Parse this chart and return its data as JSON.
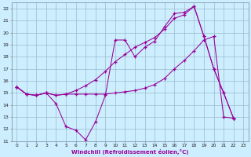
{
  "xlabel": "Windchill (Refroidissement éolien,°C)",
  "bg_color": "#cceeff",
  "line_color": "#990099",
  "grid_color": "#99bbcc",
  "xlim": [
    -0.5,
    23.5
  ],
  "ylim": [
    11,
    22.5
  ],
  "xticks": [
    0,
    1,
    2,
    3,
    4,
    5,
    6,
    7,
    8,
    9,
    10,
    11,
    12,
    13,
    14,
    15,
    16,
    17,
    18,
    19,
    20,
    21,
    22,
    23
  ],
  "yticks": [
    11,
    12,
    13,
    14,
    15,
    16,
    17,
    18,
    19,
    20,
    21,
    22
  ],
  "series": [
    {
      "x": [
        0,
        1,
        2,
        3,
        4,
        5,
        6,
        7,
        8,
        9,
        10,
        11,
        12,
        13,
        14,
        15,
        16,
        17,
        18,
        19,
        20,
        21,
        22
      ],
      "y": [
        15.5,
        14.9,
        14.8,
        15.0,
        14.1,
        12.2,
        11.9,
        11.1,
        12.6,
        14.8,
        19.4,
        19.4,
        18.0,
        18.8,
        19.3,
        20.5,
        21.6,
        21.7,
        22.2,
        19.7,
        17.0,
        15.0,
        12.9
      ]
    },
    {
      "x": [
        0,
        1,
        2,
        3,
        4,
        5,
        6,
        7,
        8,
        9,
        10,
        11,
        12,
        13,
        14,
        15,
        16,
        17,
        18,
        19,
        20,
        21,
        22
      ],
      "y": [
        15.5,
        14.9,
        14.8,
        15.0,
        14.8,
        14.9,
        14.9,
        14.9,
        14.9,
        14.9,
        15.0,
        15.1,
        15.2,
        15.4,
        15.7,
        16.2,
        17.0,
        17.7,
        18.5,
        19.4,
        19.7,
        13.0,
        12.9
      ]
    },
    {
      "x": [
        0,
        1,
        2,
        3,
        4,
        5,
        6,
        7,
        8,
        9,
        10,
        11,
        12,
        13,
        14,
        15,
        16,
        17,
        18,
        19,
        20,
        21,
        22
      ],
      "y": [
        15.5,
        14.9,
        14.8,
        15.0,
        14.8,
        14.9,
        15.2,
        15.6,
        16.1,
        16.8,
        17.6,
        18.2,
        18.8,
        19.2,
        19.6,
        20.3,
        21.2,
        21.5,
        22.2,
        19.7,
        17.0,
        15.0,
        12.9
      ]
    }
  ]
}
